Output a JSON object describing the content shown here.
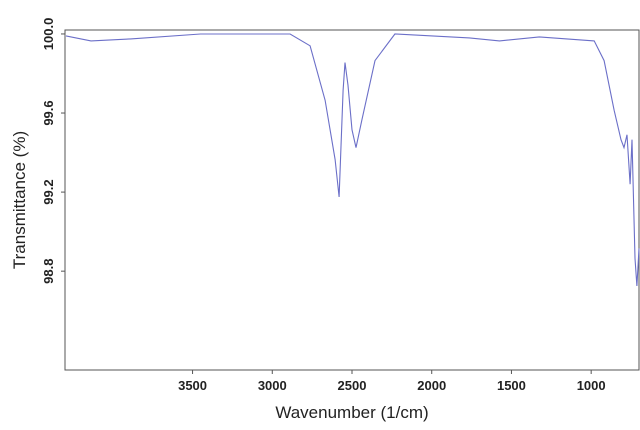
{
  "chart_data": {
    "type": "line",
    "xlabel": "Wavenumber (1/cm)",
    "ylabel": "Transmittance (%)",
    "x": [
      4294,
      4137,
      3888,
      3450,
      2888,
      2763,
      2669,
      2606,
      2581,
      2556,
      2544,
      2525,
      2500,
      2475,
      2438,
      2356,
      2231,
      1763,
      1575,
      1325,
      981,
      919,
      856,
      813,
      794,
      775,
      756,
      744,
      725,
      713,
      700
    ],
    "series": [
      {
        "color": "#6b6fc8",
        "values": [
          99.99,
          99.965,
          99.975,
          100.0,
          100.0,
          99.94,
          99.665,
          99.365,
          99.175,
          99.715,
          99.855,
          99.74,
          99.515,
          99.425,
          99.565,
          99.865,
          100.0,
          99.98,
          99.965,
          99.985,
          99.965,
          99.865,
          99.615,
          99.465,
          99.425,
          99.49,
          99.24,
          99.465,
          98.865,
          98.725,
          98.915
        ]
      }
    ],
    "xlim": [
      4300,
      700
    ],
    "xticks": [
      3500,
      3000,
      2500,
      2000,
      1500,
      1000
    ],
    "ylim": [
      98.3,
      100.02
    ],
    "yticks": [
      {
        "value": 100,
        "label": "100.0"
      },
      99.6,
      99.2,
      98.8
    ]
  }
}
